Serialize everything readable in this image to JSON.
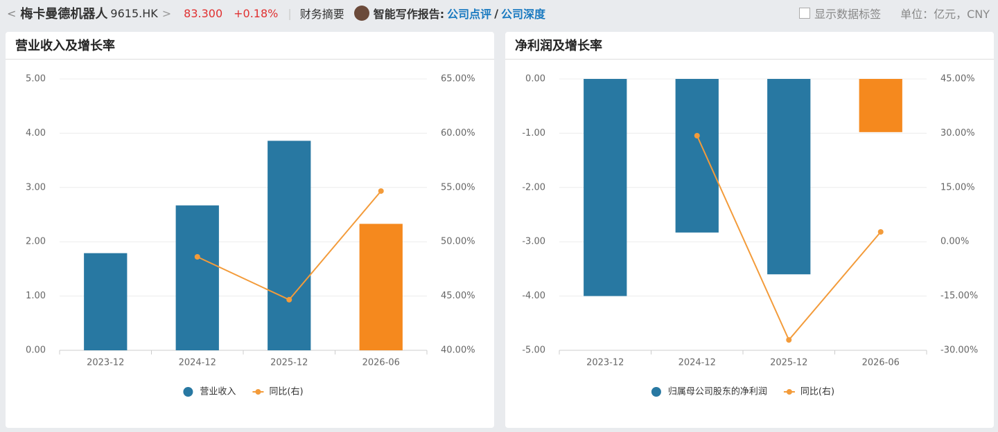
{
  "header": {
    "name": "梅卡曼德机器人",
    "code": "9615.HK",
    "price": "83.300",
    "change": "+0.18%",
    "summary": "财务摘要",
    "report_label": "智能写作报告:",
    "link1": "公司点评",
    "separator": "/",
    "link2": "公司深度",
    "checkbox_label": "显示数据标签",
    "unit": "单位：亿元，CNY"
  },
  "chart_data": [
    {
      "type": "combo",
      "title": "营业收入及增长率",
      "categories": [
        "2023-12",
        "2024-12",
        "2025-12",
        "2026-06"
      ],
      "series": [
        {
          "name": "营业收入",
          "type": "bar",
          "color": "#2878a2",
          "colors": [
            "#2878a2",
            "#2878a2",
            "#2878a2",
            "#f5891e"
          ],
          "values": [
            1.79,
            2.67,
            3.86,
            2.33
          ]
        },
        {
          "name": "同比(右)",
          "type": "line",
          "axis": "y2",
          "color": "#f39b3a",
          "values": [
            null,
            48.61,
            44.66,
            54.67
          ]
        }
      ],
      "ylim": [
        0,
        5
      ],
      "yticks": [
        {
          "value": 0,
          "label": "0.00"
        },
        {
          "value": 1,
          "label": "1.00"
        },
        {
          "value": 2,
          "label": "2.00"
        },
        {
          "value": 3,
          "label": "3.00"
        },
        {
          "value": 4,
          "label": "4.00"
        },
        {
          "value": 5,
          "label": "5.00"
        }
      ],
      "y2lim": [
        40,
        65
      ],
      "y2ticks": [
        {
          "value": 40,
          "label": "40.00%"
        },
        {
          "value": 45,
          "label": "45.00%"
        },
        {
          "value": 50,
          "label": "50.00%"
        },
        {
          "value": 55,
          "label": "55.00%"
        },
        {
          "value": 60,
          "label": "60.00%"
        },
        {
          "value": 65,
          "label": "65.00%"
        }
      ],
      "grid": true
    },
    {
      "type": "combo",
      "title": "净利润及增长率",
      "categories": [
        "2023-12",
        "2024-12",
        "2025-12",
        "2026-06"
      ],
      "series": [
        {
          "name": "归属母公司股东的净利润",
          "type": "bar",
          "color": "#2878a2",
          "colors": [
            "#2878a2",
            "#2878a2",
            "#2878a2",
            "#f5891e"
          ],
          "values": [
            -4.0,
            -2.83,
            -3.6,
            -0.98
          ]
        },
        {
          "name": "同比(右)",
          "type": "line",
          "axis": "y2",
          "color": "#f39b3a",
          "values": [
            null,
            29.31,
            -27.13,
            2.72
          ]
        }
      ],
      "ylim": [
        -5,
        0
      ],
      "yticks": [
        {
          "value": -5,
          "label": "-5.00"
        },
        {
          "value": -4,
          "label": "-4.00"
        },
        {
          "value": -3,
          "label": "-3.00"
        },
        {
          "value": -2,
          "label": "-2.00"
        },
        {
          "value": -1,
          "label": "-1.00"
        },
        {
          "value": 0,
          "label": "0.00"
        }
      ],
      "y2lim": [
        -30,
        45
      ],
      "y2ticks": [
        {
          "value": -30,
          "label": "-30.00%"
        },
        {
          "value": -15,
          "label": "-15.00%"
        },
        {
          "value": 0,
          "label": "0.00%"
        },
        {
          "value": 15,
          "label": "15.00%"
        },
        {
          "value": 30,
          "label": "30.00%"
        },
        {
          "value": 45,
          "label": "45.00%"
        }
      ],
      "grid": true
    }
  ]
}
